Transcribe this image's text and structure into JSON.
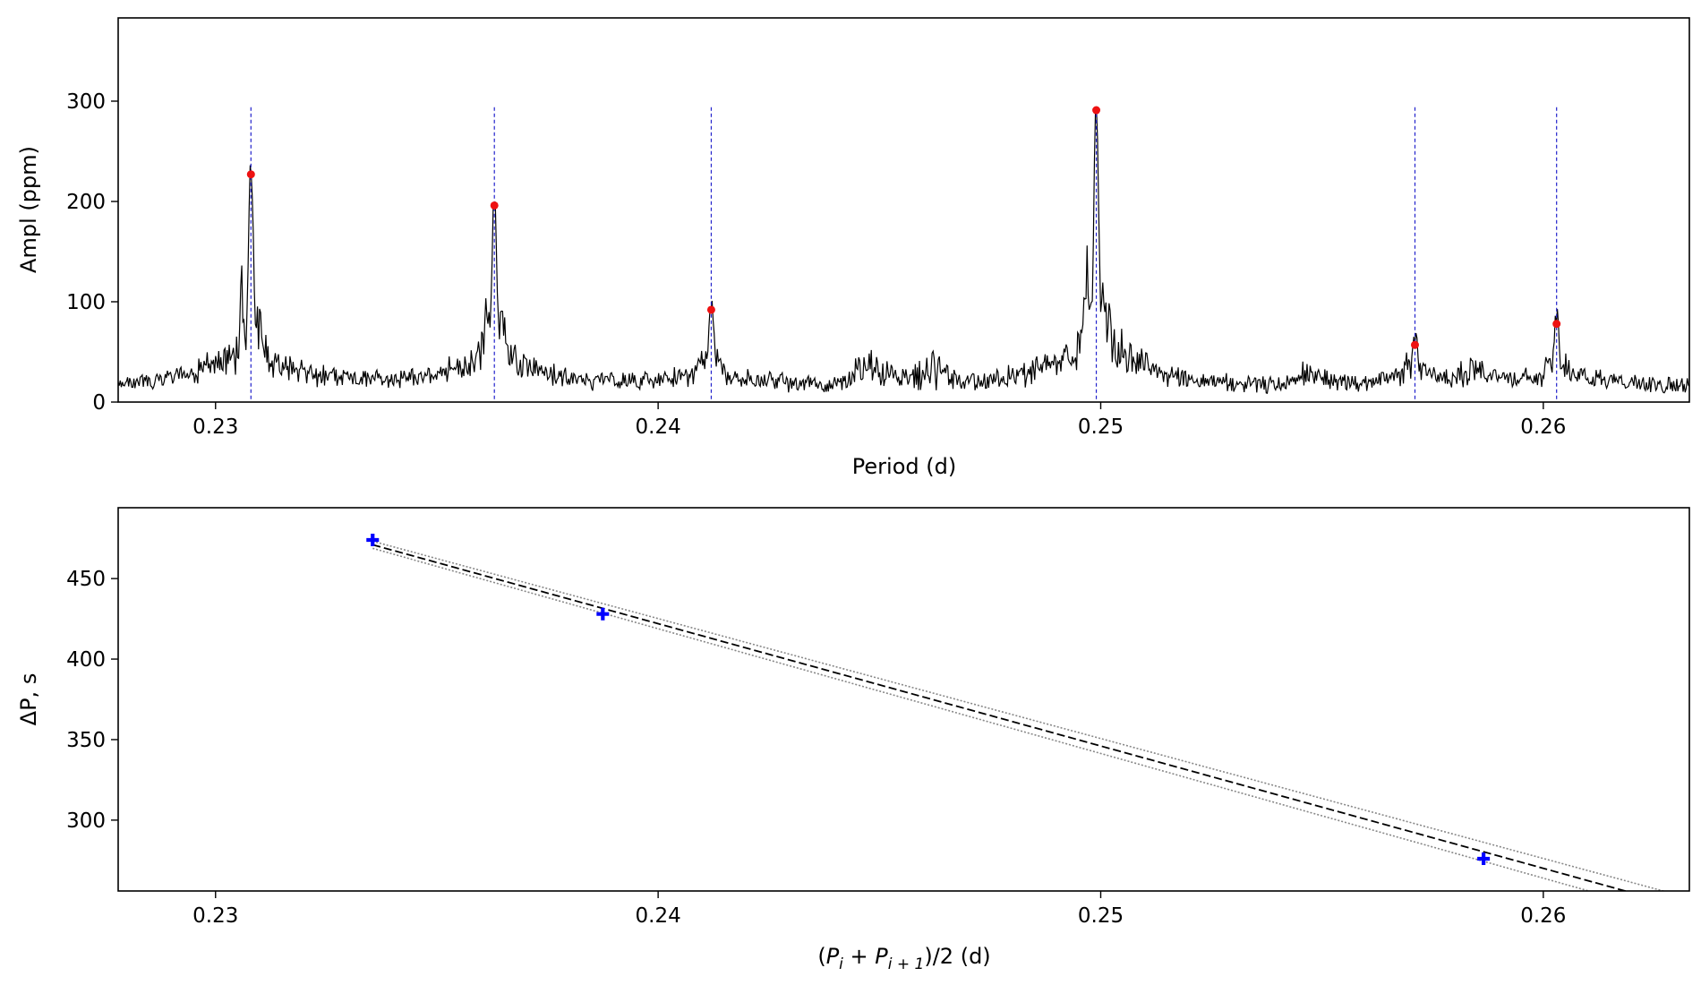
{
  "chart_data": [
    {
      "type": "line",
      "xlabel": "Period (d)",
      "ylabel": "Ampl (ppm)",
      "xlim": [
        0.2278,
        0.2633
      ],
      "ylim": [
        0,
        383
      ],
      "xticks": [
        0.23,
        0.24,
        0.25,
        0.26
      ],
      "xtick_labels": [
        "0.23",
        "0.24",
        "0.25",
        "0.26"
      ],
      "yticks": [
        0,
        100,
        200,
        300
      ],
      "ytick_labels": [
        "0",
        "100",
        "200",
        "300"
      ],
      "series": [
        {
          "type": "line",
          "color": "#000000",
          "description": "periodogram amplitude spectrum"
        }
      ],
      "peaks": [
        {
          "x": 0.2308,
          "y": 227
        },
        {
          "x": 0.2363,
          "y": 196
        },
        {
          "x": 0.2412,
          "y": 92
        },
        {
          "x": 0.2499,
          "y": 291
        },
        {
          "x": 0.2571,
          "y": 57
        },
        {
          "x": 0.2603,
          "y": 78
        }
      ],
      "marker_lines": [
        0.2308,
        0.2363,
        0.2412,
        0.2499,
        0.2571,
        0.2603
      ],
      "marker_line_top": 294,
      "peak_color": "#ee1111",
      "marker_line_color": "#2222cc",
      "grid": false
    },
    {
      "type": "scatter",
      "xlabel_parts": {
        "open": "(",
        "p1": "P",
        "sub1": "i",
        "plus": " + ",
        "p2": "P",
        "sub2": "i + 1",
        "close": ")/2 (d)"
      },
      "ylabel": "ΔP, s",
      "xlim": [
        0.2278,
        0.2633
      ],
      "ylim": [
        256,
        494
      ],
      "xticks": [
        0.23,
        0.24,
        0.25,
        0.26
      ],
      "xtick_labels": [
        "0.23",
        "0.24",
        "0.25",
        "0.26"
      ],
      "yticks": [
        300,
        350,
        400,
        450
      ],
      "ytick_labels": [
        "300",
        "350",
        "400",
        "450"
      ],
      "points": [
        {
          "x": 0.23355,
          "y": 474
        },
        {
          "x": 0.23875,
          "y": 428
        },
        {
          "x": 0.25865,
          "y": 276
        }
      ],
      "point_color": "#0000ff",
      "fit_line": {
        "x": [
          0.23355,
          0.2633
        ],
        "y": [
          471,
          245
        ]
      },
      "fit_band_offset": 2.2,
      "grid": false
    }
  ]
}
